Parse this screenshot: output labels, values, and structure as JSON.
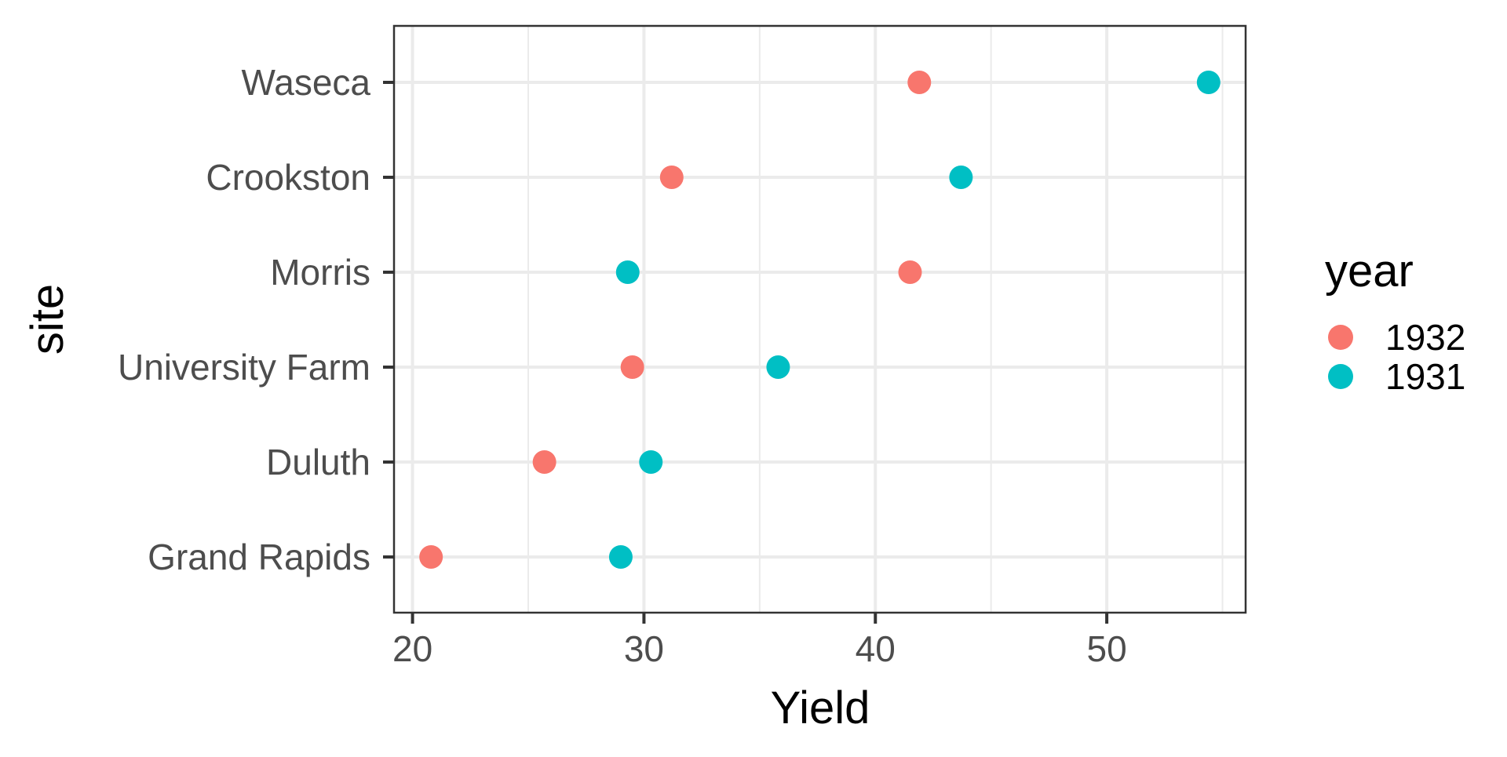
{
  "chart_data": {
    "type": "scatter",
    "xlabel": "Yield",
    "ylabel": "site",
    "xlim": [
      19.2,
      56.0
    ],
    "xticks": [
      20,
      30,
      40,
      50
    ],
    "x_minor_ticks": [
      25,
      35,
      45,
      55
    ],
    "categories": [
      "Waseca",
      "Crookston",
      "Morris",
      "University Farm",
      "Duluth",
      "Grand Rapids"
    ],
    "series": [
      {
        "name": "1932",
        "color": "#F8766D",
        "values": [
          41.9,
          31.2,
          41.5,
          29.5,
          25.7,
          20.8
        ]
      },
      {
        "name": "1931",
        "color": "#00BFC4",
        "values": [
          54.4,
          43.7,
          29.3,
          35.8,
          30.3,
          29.0
        ]
      }
    ],
    "grid": true,
    "legend": {
      "title": "year",
      "position": "right"
    }
  }
}
